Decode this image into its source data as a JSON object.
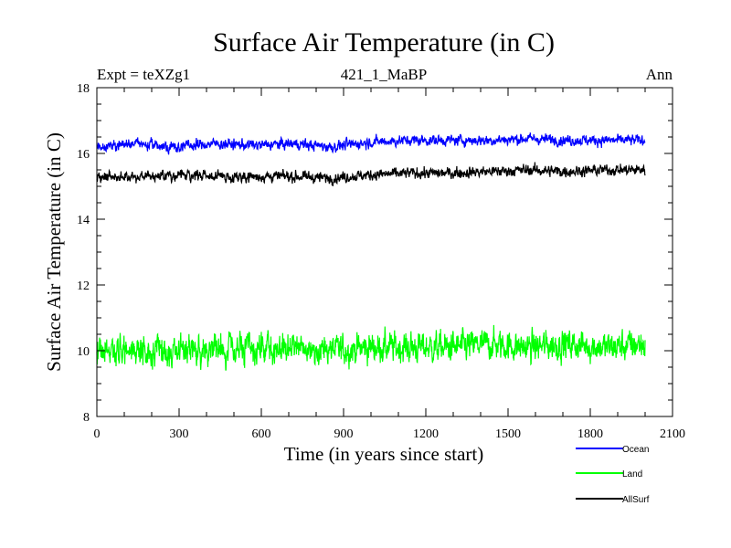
{
  "chart_data": {
    "type": "line",
    "title": "Surface Air Temperature (in C)",
    "subtitle": "421_1_MaBP",
    "left_label": "Expt = teXZg1",
    "right_label": "Ann",
    "xlabel": "Time (in years since start)",
    "ylabel": "Surface Air Temperature (in C)",
    "xlim": [
      0,
      2100
    ],
    "ylim": [
      8,
      18
    ],
    "x_ticks": [
      0,
      300,
      600,
      900,
      1200,
      1500,
      1800,
      2100
    ],
    "y_ticks": [
      8,
      10,
      12,
      14,
      16,
      18
    ],
    "x_start": 0,
    "x_end": 2000,
    "series": [
      {
        "name": "Ocean",
        "color": "#0000ff",
        "mean": 16.2,
        "trend": 0.2,
        "noise": 0.1,
        "samples": [
          16.2,
          16.3,
          16.2,
          16.3,
          16.25,
          16.3,
          16.2,
          16.35,
          16.4,
          16.4,
          16.4,
          16.45,
          16.4,
          16.4,
          16.4
        ]
      },
      {
        "name": "Land",
        "color": "#00ff00",
        "mean": 10.0,
        "trend": 0.2,
        "noise": 0.28,
        "samples": [
          10.0,
          10.0,
          10.0,
          10.1,
          10.0,
          10.1,
          10.0,
          10.1,
          10.1,
          10.1,
          10.2,
          10.1,
          10.2,
          10.1,
          10.2
        ]
      },
      {
        "name": "AllSurf",
        "color": "#000000",
        "mean": 15.25,
        "trend": 0.2,
        "noise": 0.1,
        "samples": [
          15.25,
          15.3,
          15.35,
          15.3,
          15.3,
          15.3,
          15.25,
          15.35,
          15.4,
          15.4,
          15.45,
          15.5,
          15.45,
          15.5,
          15.5
        ]
      }
    ]
  }
}
